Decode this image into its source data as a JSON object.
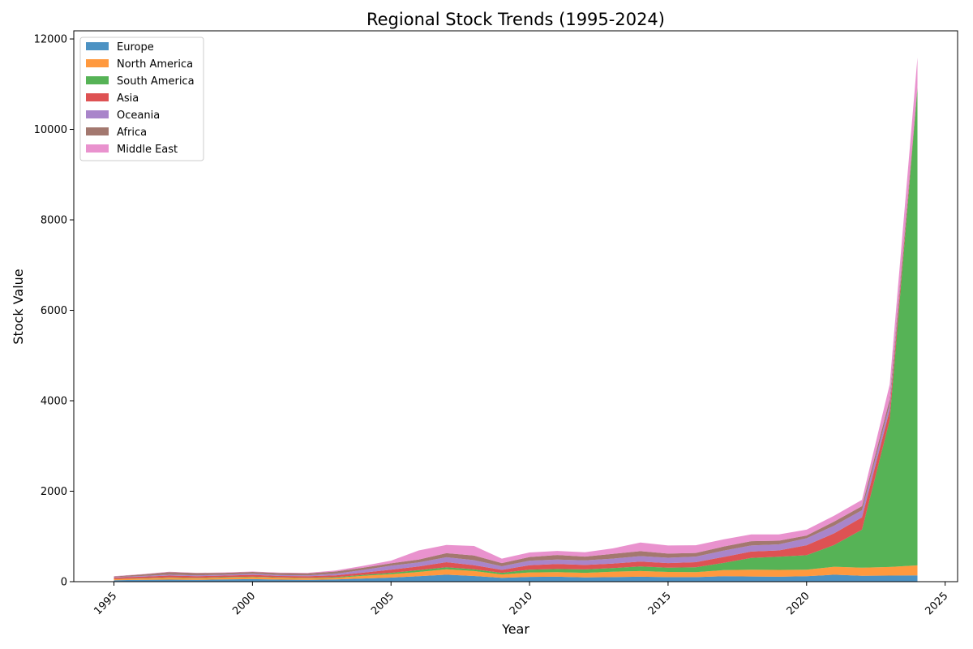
{
  "chart_data": {
    "type": "area",
    "title": "Regional Stock Trends (1995-2024)",
    "xlabel": "Year",
    "ylabel": "Stock Value",
    "xlim": [
      1993.55,
      2025.45
    ],
    "ylim": [
      0,
      12180
    ],
    "xticks": [
      1995,
      2000,
      2005,
      2010,
      2015,
      2020,
      2025
    ],
    "yticks": [
      0,
      2000,
      4000,
      6000,
      8000,
      10000,
      12000
    ],
    "legend_position": "top-left",
    "grid": false,
    "stacked": true,
    "x": [
      1995,
      1996,
      1997,
      1998,
      1999,
      2000,
      2001,
      2002,
      2003,
      2004,
      2005,
      2006,
      2007,
      2008,
      2009,
      2010,
      2011,
      2012,
      2013,
      2014,
      2015,
      2016,
      2017,
      2018,
      2019,
      2020,
      2021,
      2022,
      2023,
      2024
    ],
    "series": [
      {
        "name": "Europe",
        "color": "#1f77b4",
        "values": [
          30,
          40,
          45,
          40,
          50,
          55,
          45,
          40,
          50,
          70,
          90,
          120,
          155,
          125,
          85,
          105,
          110,
          95,
          100,
          110,
          100,
          100,
          120,
          115,
          110,
          120,
          155,
          130,
          135,
          140
        ]
      },
      {
        "name": "North America",
        "color": "#ff7f0e",
        "values": [
          25,
          30,
          40,
          35,
          40,
          45,
          40,
          35,
          35,
          60,
          75,
          95,
          120,
          110,
          75,
          100,
          100,
          100,
          120,
          125,
          115,
          110,
          135,
          150,
          150,
          145,
          175,
          180,
          190,
          220
        ]
      },
      {
        "name": "South America",
        "color": "#2ca02c",
        "values": [
          5,
          5,
          10,
          10,
          10,
          10,
          10,
          10,
          15,
          20,
          30,
          40,
          45,
          40,
          35,
          60,
          70,
          75,
          80,
          100,
          95,
          110,
          160,
          260,
          290,
          320,
          480,
          840,
          3250,
          10550
        ]
      },
      {
        "name": "Asia",
        "color": "#d62728",
        "values": [
          30,
          35,
          40,
          35,
          35,
          40,
          30,
          35,
          40,
          50,
          70,
          80,
          110,
          90,
          65,
          100,
          110,
          100,
          100,
          110,
          100,
          110,
          130,
          140,
          140,
          220,
          260,
          270,
          220,
          30
        ]
      },
      {
        "name": "Oceania",
        "color": "#9467bd",
        "values": [
          10,
          15,
          20,
          20,
          20,
          25,
          20,
          20,
          35,
          60,
          90,
          90,
          110,
          110,
          80,
          100,
          100,
          100,
          110,
          120,
          120,
          125,
          140,
          135,
          135,
          155,
          170,
          160,
          130,
          20
        ]
      },
      {
        "name": "Africa",
        "color": "#8c564b",
        "values": [
          15,
          35,
          55,
          50,
          40,
          40,
          45,
          45,
          50,
          50,
          50,
          65,
          90,
          105,
          70,
          80,
          100,
          85,
          105,
          110,
          90,
          80,
          90,
          95,
          80,
          60,
          90,
          90,
          110,
          10
        ]
      },
      {
        "name": "Middle East",
        "color": "#e377c2",
        "values": [
          5,
          5,
          10,
          5,
          10,
          10,
          10,
          10,
          20,
          40,
          60,
          200,
          180,
          210,
          100,
          100,
          90,
          95,
          120,
          190,
          180,
          170,
          160,
          150,
          140,
          130,
          130,
          140,
          330,
          620
        ]
      }
    ]
  }
}
